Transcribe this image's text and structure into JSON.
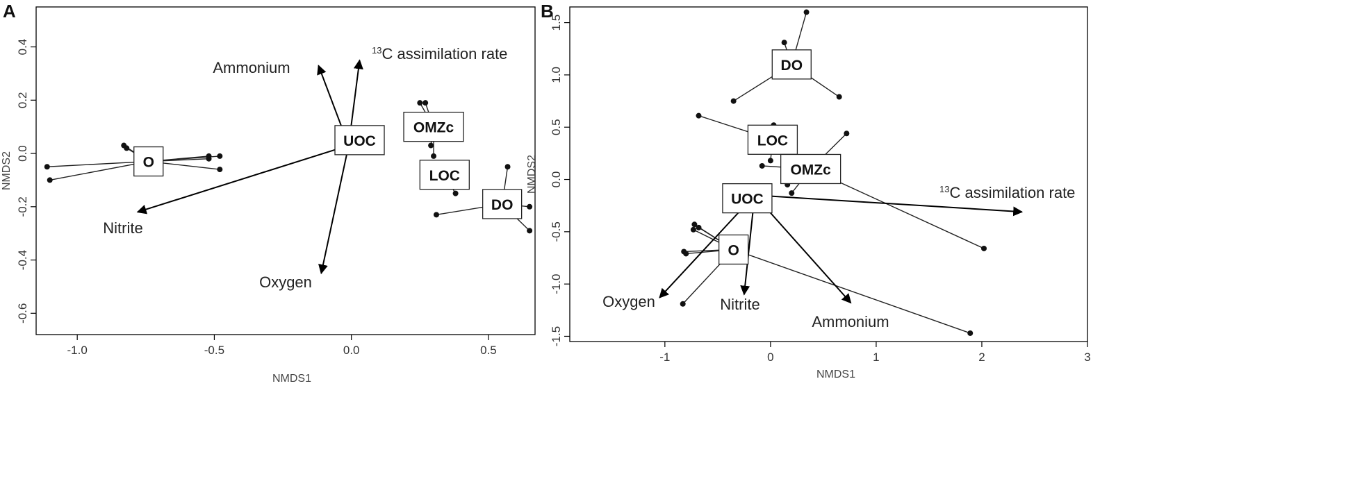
{
  "chart_data": [
    {
      "panel": "A",
      "type": "scatter",
      "xlabel": "NMDS1",
      "ylabel": "NMDS2",
      "xlim": [
        -1.15,
        0.67
      ],
      "ylim": [
        -0.68,
        0.55
      ],
      "xticks": [
        -1.0,
        -0.5,
        0.0,
        0.5
      ],
      "xtick_labels": [
        "-1.0",
        "-0.5",
        "0.0",
        "0.5"
      ],
      "yticks": [
        -0.6,
        -0.4,
        -0.2,
        0.0,
        0.2,
        0.4
      ],
      "ytick_labels": [
        "-0.6",
        "-0.4",
        "-0.2",
        "0.0",
        "0.2",
        "0.4"
      ],
      "groups": [
        {
          "name": "O",
          "centroid": [
            -0.74,
            -0.03
          ],
          "points": [
            [
              -0.83,
              0.03
            ],
            [
              -0.82,
              0.02
            ],
            [
              -1.11,
              -0.05
            ],
            [
              -1.1,
              -0.1
            ],
            [
              -0.52,
              -0.01
            ],
            [
              -0.48,
              -0.01
            ],
            [
              -0.52,
              -0.02
            ],
            [
              -0.48,
              -0.06
            ]
          ]
        },
        {
          "name": "UOC",
          "centroid": [
            0.03,
            0.05
          ],
          "points": []
        },
        {
          "name": "OMZc",
          "centroid": [
            0.3,
            0.1
          ],
          "points": [
            [
              0.25,
              0.19
            ],
            [
              0.27,
              0.19
            ],
            [
              0.29,
              0.03
            ],
            [
              0.3,
              -0.01
            ]
          ]
        },
        {
          "name": "LOC",
          "centroid": [
            0.34,
            -0.08
          ],
          "points": [
            [
              0.38,
              -0.15
            ]
          ]
        },
        {
          "name": "DO",
          "centroid": [
            0.55,
            -0.19
          ],
          "points": [
            [
              0.57,
              -0.05
            ],
            [
              0.31,
              -0.23
            ],
            [
              0.65,
              -0.2
            ],
            [
              0.65,
              -0.29
            ]
          ]
        }
      ],
      "vectors": [
        {
          "name": "Ammonium",
          "end": [
            -0.12,
            0.33
          ]
        },
        {
          "name": "13C assimilation rate",
          "end": [
            0.03,
            0.35
          ]
        },
        {
          "name": "Nitrite",
          "end": [
            -0.78,
            -0.22
          ]
        },
        {
          "name": "Oxygen",
          "end": [
            -0.11,
            -0.45
          ]
        }
      ],
      "vector_origin": [
        -0.01,
        0.03
      ]
    },
    {
      "panel": "B",
      "type": "scatter",
      "xlabel": "NMDS1",
      "ylabel": "NMDS2",
      "xlim": [
        -1.9,
        3.0
      ],
      "ylim": [
        -1.55,
        1.65
      ],
      "xticks": [
        -1,
        0,
        1,
        2,
        3
      ],
      "xtick_labels": [
        "-1",
        "0",
        "1",
        "2",
        "3"
      ],
      "yticks": [
        -1.5,
        -1.0,
        -0.5,
        0.0,
        0.5,
        1.0,
        1.5
      ],
      "ytick_labels": [
        "-1.5",
        "-1.0",
        "-0.5",
        "0.0",
        "0.5",
        "1.0",
        "1.5"
      ],
      "groups": [
        {
          "name": "DO",
          "centroid": [
            0.2,
            1.1
          ],
          "points": [
            [
              0.13,
              1.31
            ],
            [
              0.34,
              1.6
            ],
            [
              -0.35,
              0.75
            ],
            [
              0.65,
              0.79
            ]
          ]
        },
        {
          "name": "LOC",
          "centroid": [
            0.02,
            0.38
          ],
          "points": [
            [
              -0.68,
              0.61
            ],
            [
              0.03,
              0.52
            ],
            [
              0.05,
              0.3
            ],
            [
              0.0,
              0.18
            ]
          ]
        },
        {
          "name": "OMZc",
          "centroid": [
            0.38,
            0.1
          ],
          "points": [
            [
              0.72,
              0.44
            ],
            [
              -0.08,
              0.13
            ],
            [
              0.16,
              -0.05
            ],
            [
              0.2,
              -0.13
            ],
            [
              2.02,
              -0.66
            ]
          ]
        },
        {
          "name": "UOC",
          "centroid": [
            -0.22,
            -0.18
          ],
          "points": []
        },
        {
          "name": "O",
          "centroid": [
            -0.35,
            -0.67
          ],
          "points": [
            [
              -0.72,
              -0.43
            ],
            [
              -0.68,
              -0.46
            ],
            [
              -0.73,
              -0.48
            ],
            [
              -0.82,
              -0.69
            ],
            [
              -0.8,
              -0.71
            ],
            [
              -0.83,
              -1.19
            ],
            [
              1.89,
              -1.47
            ]
          ]
        }
      ],
      "vectors": [
        {
          "name": "13C assimilation rate",
          "end": [
            2.38,
            -0.31
          ]
        },
        {
          "name": "Oxygen",
          "end": [
            -1.05,
            -1.13
          ]
        },
        {
          "name": "Nitrite",
          "end": [
            -0.25,
            -1.1
          ]
        },
        {
          "name": "Ammonium",
          "end": [
            0.76,
            -1.18
          ]
        }
      ],
      "vector_origin": [
        -0.15,
        -0.15
      ]
    }
  ]
}
